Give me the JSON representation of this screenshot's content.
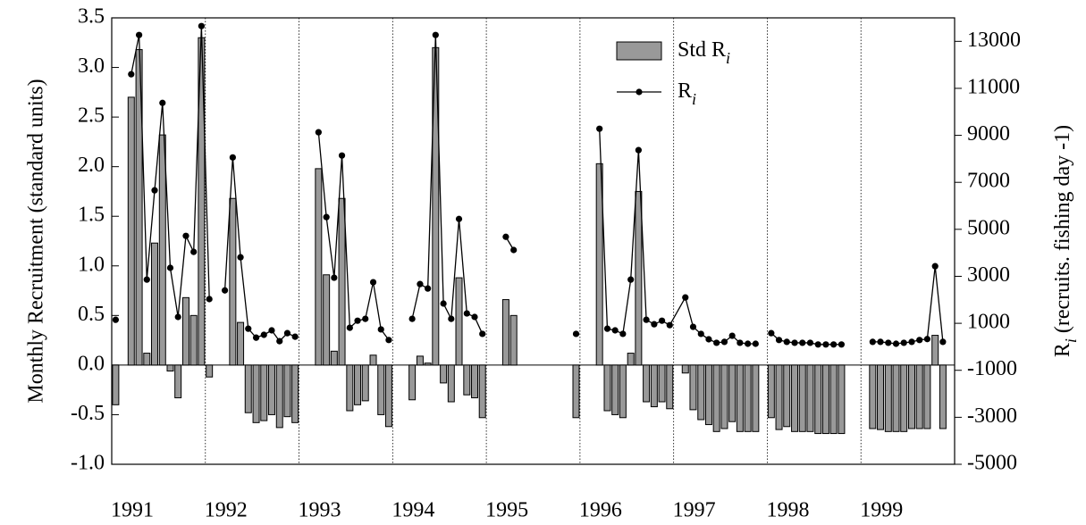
{
  "chart_data": {
    "type": "bar-line",
    "ylabel": "Monthly Recruitment (standard units)",
    "y2label": "Ri (recruits. fishing day -1)",
    "xlim": [
      1991,
      2000
    ],
    "xticks": [
      1991,
      1992,
      1993,
      1994,
      1995,
      1996,
      1997,
      1998,
      1999
    ],
    "ylim": [
      -1.0,
      3.5
    ],
    "yticks": [
      {
        "value": -1,
        "label": "-1.0"
      },
      -0.5,
      {
        "value": 0,
        "label": "0.0"
      },
      0.5,
      {
        "value": 1,
        "label": "1.0"
      },
      1.5,
      {
        "value": 2,
        "label": "2.0"
      },
      2.5,
      {
        "value": 3,
        "label": "3.0"
      },
      3.5
    ],
    "y2lim": [
      -5000,
      14000
    ],
    "y2ticks": [
      -5000,
      -3000,
      -1000,
      1000,
      3000,
      5000,
      7000,
      9000,
      11000,
      13000
    ],
    "x": [
      1991.042,
      1991.125,
      1991.208,
      1991.292,
      1991.375,
      1991.458,
      1991.542,
      1991.625,
      1991.708,
      1991.792,
      1991.875,
      1991.958,
      1992.042,
      1992.125,
      1992.208,
      1992.292,
      1992.375,
      1992.458,
      1992.542,
      1992.625,
      1992.708,
      1992.792,
      1992.875,
      1992.958,
      1993.042,
      1993.208,
      1993.292,
      1993.375,
      1993.458,
      1993.542,
      1993.625,
      1993.708,
      1993.792,
      1993.875,
      1993.958,
      1994.042,
      1994.208,
      1994.292,
      1994.375,
      1994.458,
      1994.542,
      1994.625,
      1994.708,
      1994.792,
      1994.875,
      1994.958,
      1995.042,
      1995.208,
      1995.292,
      1995.375,
      1995.958,
      1996.042,
      1996.208,
      1996.292,
      1996.375,
      1996.458,
      1996.542,
      1996.625,
      1996.708,
      1996.792,
      1996.875,
      1996.958,
      1997.125,
      1997.208,
      1997.292,
      1997.375,
      1997.458,
      1997.542,
      1997.625,
      1997.708,
      1997.792,
      1997.875,
      1997.958,
      1998.042,
      1998.125,
      1998.208,
      1998.292,
      1998.375,
      1998.458,
      1998.542,
      1998.625,
      1998.708,
      1998.792,
      1998.875,
      1999.125,
      1999.208,
      1999.292,
      1999.375,
      1999.458,
      1999.542,
      1999.625,
      1999.708,
      1999.792,
      1999.875
    ],
    "series": [
      {
        "name": "Std Ri",
        "kind": "bar",
        "color": "#999999",
        "values": [
          -0.4,
          null,
          2.7,
          3.18,
          0.12,
          1.23,
          2.32,
          -0.06,
          -0.33,
          0.68,
          0.5,
          3.3,
          -0.12,
          null,
          null,
          1.68,
          0.43,
          -0.48,
          -0.58,
          -0.56,
          -0.5,
          -0.63,
          -0.52,
          -0.58,
          null,
          1.98,
          0.91,
          0.14,
          1.68,
          -0.46,
          -0.4,
          -0.36,
          0.1,
          -0.5,
          -0.62,
          null,
          -0.35,
          0.09,
          0.02,
          3.2,
          -0.18,
          -0.37,
          0.88,
          -0.3,
          -0.33,
          -0.53,
          null,
          0.66,
          0.5,
          null,
          -0.53,
          null,
          2.03,
          -0.46,
          -0.5,
          -0.53,
          0.12,
          1.75,
          -0.37,
          -0.42,
          -0.37,
          -0.44,
          -0.08,
          -0.45,
          -0.55,
          -0.6,
          -0.67,
          -0.64,
          -0.57,
          -0.67,
          -0.67,
          -0.67,
          null,
          -0.53,
          -0.65,
          -0.62,
          -0.67,
          -0.67,
          -0.67,
          -0.69,
          -0.69,
          -0.69,
          -0.69,
          null,
          -0.64,
          -0.65,
          -0.67,
          -0.67,
          -0.67,
          -0.64,
          -0.64,
          -0.64,
          0.3,
          -0.64
        ]
      },
      {
        "name": "Ri",
        "kind": "line",
        "axis": "y2",
        "color": "#000000",
        "values": [
          1150,
          null,
          11600,
          13270,
          2860,
          6660,
          10380,
          3360,
          1270,
          4720,
          4040,
          13650,
          2030,
          null,
          2400,
          8060,
          3810,
          770,
          390,
          510,
          700,
          240,
          580,
          430,
          null,
          9130,
          5520,
          2940,
          8140,
          810,
          1110,
          1190,
          2750,
          740,
          290,
          null,
          1190,
          2670,
          2480,
          13270,
          1840,
          1190,
          5440,
          1420,
          1270,
          550,
          null,
          4680,
          4120,
          null,
          550,
          null,
          9280,
          770,
          700,
          550,
          2860,
          8370,
          1150,
          960,
          1110,
          920,
          2100,
          850,
          550,
          320,
          170,
          210,
          470,
          170,
          130,
          130,
          null,
          580,
          290,
          210,
          170,
          170,
          170,
          100,
          100,
          100,
          100,
          null,
          210,
          210,
          170,
          130,
          170,
          210,
          290,
          330,
          3430,
          210
        ]
      }
    ]
  }
}
